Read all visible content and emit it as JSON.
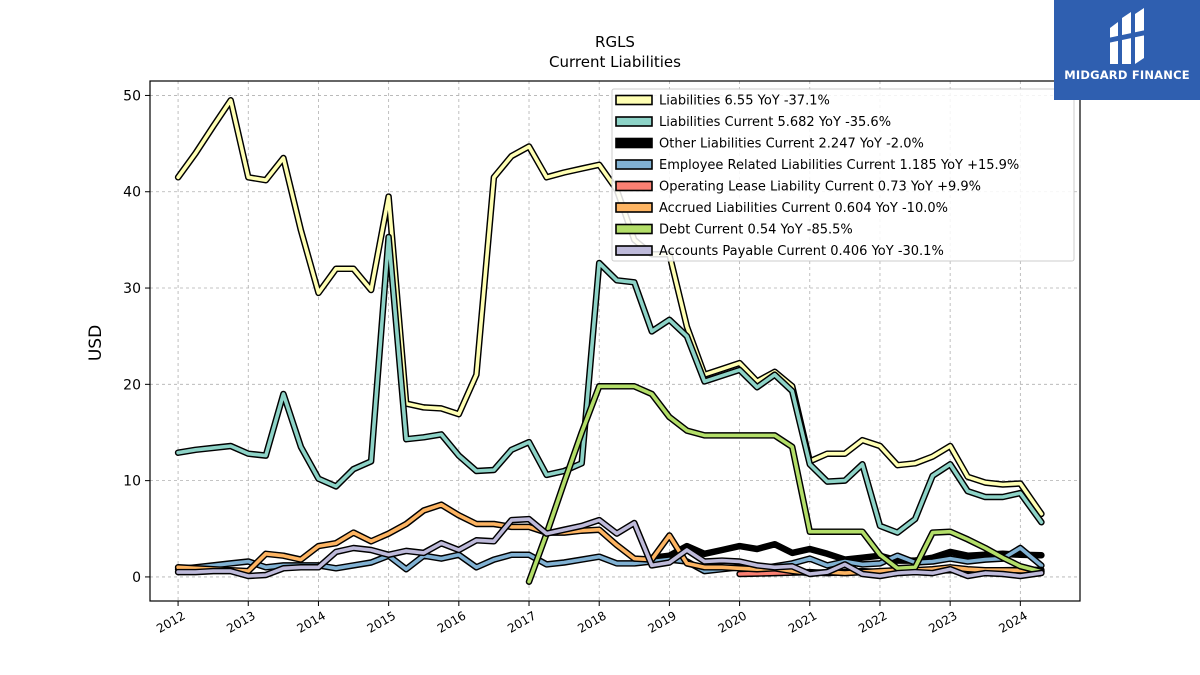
{
  "logo": {
    "text": "MIDGARD FINANCE",
    "bg_color": "#2f5fb0"
  },
  "chart_data": {
    "type": "line",
    "title": "RGLS",
    "subtitle": "Current  Liabilities",
    "ylabel": "USD",
    "xlabel": "",
    "xlim": [
      2011.6,
      2024.85
    ],
    "ylim": [
      -2.5,
      51.5
    ],
    "yticks": [
      0,
      10,
      20,
      30,
      40,
      50
    ],
    "xticks": [
      2012,
      2013,
      2014,
      2015,
      2016,
      2017,
      2018,
      2019,
      2020,
      2021,
      2022,
      2023,
      2024
    ],
    "grid": true,
    "legend_position": "top-right",
    "series": [
      {
        "name": "Liabilities",
        "legend_label": "Liabilities  6.55 YoY -37.1%",
        "color": "#ffffb3",
        "x": [
          2012.0,
          2012.25,
          2012.5,
          2012.75,
          2013.0,
          2013.25,
          2013.5,
          2013.75,
          2014.0,
          2014.25,
          2014.5,
          2014.75,
          2015.0,
          2015.25,
          2015.5,
          2015.75,
          2016.0,
          2016.25,
          2016.5,
          2016.75,
          2017.0,
          2017.25,
          2017.5,
          2017.75,
          2018.0,
          2018.25,
          2018.5,
          2018.75,
          2019.0,
          2019.25,
          2019.5,
          2019.75,
          2020.0,
          2020.25,
          2020.5,
          2020.75,
          2021.0,
          2021.25,
          2021.5,
          2021.75,
          2022.0,
          2022.25,
          2022.5,
          2022.75,
          2023.0,
          2023.25,
          2023.5,
          2023.75,
          2024.0,
          2024.3
        ],
        "values": [
          41.5,
          44.0,
          46.8,
          49.5,
          41.5,
          41.2,
          43.5,
          36.0,
          29.5,
          32.0,
          32.0,
          29.8,
          39.5,
          18.0,
          17.6,
          17.5,
          16.9,
          21.0,
          41.5,
          43.7,
          44.7,
          41.5,
          42.0,
          42.4,
          42.8,
          40.2,
          35.0,
          33.5,
          33.5,
          26.0,
          21.0,
          21.6,
          22.2,
          20.3,
          21.3,
          19.8,
          12.0,
          12.8,
          12.8,
          14.2,
          13.6,
          11.6,
          11.8,
          12.5,
          13.6,
          10.4,
          9.8,
          9.6,
          9.7,
          6.55
        ]
      },
      {
        "name": "Liabilities Current",
        "legend_label": "Liabilities Current  5.682 YoY -35.6%",
        "color": "#8dd3c7",
        "x": [
          2012.0,
          2012.25,
          2012.5,
          2012.75,
          2013.0,
          2013.25,
          2013.5,
          2013.75,
          2014.0,
          2014.25,
          2014.5,
          2014.75,
          2015.0,
          2015.25,
          2015.5,
          2015.75,
          2016.0,
          2016.25,
          2016.5,
          2016.75,
          2017.0,
          2017.25,
          2017.5,
          2017.75,
          2018.0,
          2018.25,
          2018.5,
          2018.75,
          2019.0,
          2019.25,
          2019.5,
          2019.75,
          2020.0,
          2020.25,
          2020.5,
          2020.75,
          2021.0,
          2021.25,
          2021.5,
          2021.75,
          2022.0,
          2022.25,
          2022.5,
          2022.75,
          2023.0,
          2023.25,
          2023.5,
          2023.75,
          2024.0,
          2024.3
        ],
        "values": [
          12.9,
          13.2,
          13.4,
          13.6,
          12.8,
          12.6,
          19.0,
          13.5,
          10.2,
          9.4,
          11.2,
          12.0,
          35.3,
          14.3,
          14.5,
          14.8,
          12.6,
          11.0,
          11.1,
          13.2,
          14.0,
          10.6,
          11.0,
          11.8,
          32.6,
          30.8,
          30.6,
          25.5,
          26.7,
          25.0,
          20.3,
          20.9,
          21.5,
          19.7,
          21.0,
          19.3,
          11.7,
          9.9,
          10.0,
          11.7,
          5.3,
          4.6,
          6.0,
          10.5,
          11.7,
          8.9,
          8.3,
          8.3,
          8.7,
          5.682
        ]
      },
      {
        "name": "Other Liabilities Current",
        "legend_label": "Other Liabilities Current  2.247 YoY -2.0%",
        "color": "#000000",
        "x": [
          2018.75,
          2019.0,
          2019.25,
          2019.5,
          2019.75,
          2020.0,
          2020.25,
          2020.5,
          2020.75,
          2021.0,
          2021.25,
          2021.5,
          2021.75,
          2022.0,
          2022.25,
          2022.5,
          2022.75,
          2023.0,
          2023.25,
          2023.5,
          2023.75,
          2024.0,
          2024.3
        ],
        "values": [
          2.0,
          2.2,
          3.2,
          2.4,
          2.8,
          3.2,
          2.9,
          3.4,
          2.5,
          2.9,
          2.4,
          1.8,
          2.0,
          2.2,
          1.7,
          1.7,
          2.0,
          2.6,
          2.2,
          2.3,
          2.4,
          2.3,
          2.247
        ]
      },
      {
        "name": "Employee Related Liabilities Current",
        "legend_label": "Employee Related Liabilities Current  1.185 YoY +15.9%",
        "color": "#80b1d3",
        "x": [
          2012.0,
          2012.25,
          2012.5,
          2012.75,
          2013.0,
          2013.25,
          2013.5,
          2013.75,
          2014.0,
          2014.25,
          2014.5,
          2014.75,
          2015.0,
          2015.25,
          2015.5,
          2015.75,
          2016.0,
          2016.25,
          2016.5,
          2016.75,
          2017.0,
          2017.25,
          2017.5,
          2017.75,
          2018.0,
          2018.25,
          2018.5,
          2018.75,
          2019.0,
          2019.25,
          2019.5,
          2019.75,
          2020.0,
          2020.25,
          2020.5,
          2020.75,
          2021.0,
          2021.25,
          2021.5,
          2021.75,
          2022.0,
          2022.25,
          2022.5,
          2022.75,
          2023.0,
          2023.25,
          2023.5,
          2023.75,
          2024.0,
          2024.3
        ],
        "values": [
          0.8,
          1.0,
          1.2,
          1.4,
          1.6,
          1.0,
          1.2,
          1.2,
          1.2,
          0.9,
          1.2,
          1.5,
          2.2,
          0.8,
          2.2,
          1.9,
          2.3,
          1.0,
          1.8,
          2.3,
          2.3,
          1.3,
          1.5,
          1.8,
          2.1,
          1.4,
          1.4,
          1.6,
          1.8,
          1.6,
          0.6,
          0.8,
          1.0,
          0.8,
          1.1,
          1.4,
          1.9,
          1.2,
          1.6,
          1.3,
          1.4,
          2.2,
          1.5,
          1.6,
          1.9,
          1.6,
          1.8,
          1.9,
          3.0,
          1.185
        ]
      },
      {
        "name": "Operating Lease Liability Current",
        "legend_label": "Operating Lease Liability Current  0.73 YoY +9.9%",
        "color": "#fb8072",
        "x": [
          2020.0,
          2020.25,
          2020.5,
          2020.75,
          2021.0,
          2021.25,
          2021.5,
          2021.75,
          2022.0,
          2022.25,
          2022.5,
          2022.75,
          2023.0,
          2023.25,
          2023.5,
          2023.75,
          2024.0,
          2024.3
        ],
        "values": [
          0.3,
          0.35,
          0.4,
          0.45,
          0.5,
          0.4,
          0.5,
          0.6,
          0.5,
          0.6,
          0.6,
          0.65,
          0.7,
          0.7,
          0.66,
          0.7,
          0.72,
          0.73
        ]
      },
      {
        "name": "Accrued Liabilities Current",
        "legend_label": "Accrued Liabilities Current  0.604 YoY -10.0%",
        "color": "#fdb462",
        "x": [
          2012.0,
          2012.25,
          2012.5,
          2012.75,
          2013.0,
          2013.25,
          2013.5,
          2013.75,
          2014.0,
          2014.25,
          2014.5,
          2014.75,
          2015.0,
          2015.25,
          2015.5,
          2015.75,
          2016.0,
          2016.25,
          2016.5,
          2016.75,
          2017.0,
          2017.25,
          2017.5,
          2017.75,
          2018.0,
          2018.25,
          2018.5,
          2018.75,
          2019.0,
          2019.25,
          2019.5,
          2019.75,
          2020.0,
          2020.25,
          2020.5,
          2020.75,
          2021.0,
          2021.25,
          2021.5,
          2021.75,
          2022.0,
          2022.25,
          2022.5,
          2022.75,
          2023.0,
          2023.25,
          2023.5,
          2023.75,
          2024.0,
          2024.3
        ],
        "values": [
          1.0,
          0.9,
          0.8,
          0.7,
          0.6,
          2.4,
          2.2,
          1.8,
          3.2,
          3.5,
          4.6,
          3.7,
          4.5,
          5.5,
          6.9,
          7.5,
          6.4,
          5.5,
          5.5,
          5.2,
          5.2,
          4.6,
          4.6,
          4.8,
          4.9,
          3.3,
          1.9,
          1.8,
          4.3,
          1.4,
          1.0,
          1.0,
          0.9,
          0.8,
          0.9,
          0.6,
          0.4,
          0.5,
          0.4,
          0.5,
          0.6,
          0.7,
          0.7,
          0.8,
          1.0,
          0.8,
          0.7,
          0.7,
          0.68,
          0.604
        ]
      },
      {
        "name": "Debt Current",
        "legend_label": "Debt Current  0.54 YoY -85.5%",
        "color": "#b3de69",
        "x": [
          2017.0,
          2017.25,
          2017.5,
          2017.75,
          2018.0,
          2018.25,
          2018.5,
          2018.75,
          2019.0,
          2019.25,
          2019.5,
          2019.75,
          2020.0,
          2020.25,
          2020.5,
          2020.75,
          2021.0,
          2021.25,
          2021.5,
          2021.75,
          2022.0,
          2022.25,
          2022.5,
          2022.75,
          2023.0,
          2023.25,
          2023.5,
          2023.75,
          2024.0,
          2024.3
        ],
        "values": [
          -0.5,
          4.5,
          9.8,
          15.0,
          19.8,
          19.8,
          19.8,
          19.0,
          16.6,
          15.2,
          14.7,
          14.7,
          14.7,
          14.7,
          14.7,
          13.5,
          4.7,
          4.7,
          4.7,
          4.7,
          2.3,
          0.9,
          1.0,
          4.6,
          4.7,
          3.9,
          3.0,
          2.0,
          1.1,
          0.54
        ]
      },
      {
        "name": "Accounts Payable Current",
        "legend_label": "Accounts Payable Current  0.406 YoY -30.1%",
        "color": "#bebada",
        "x": [
          2012.0,
          2012.25,
          2012.5,
          2012.75,
          2013.0,
          2013.25,
          2013.5,
          2013.75,
          2014.0,
          2014.25,
          2014.5,
          2014.75,
          2015.0,
          2015.25,
          2015.5,
          2015.75,
          2016.0,
          2016.25,
          2016.5,
          2016.75,
          2017.0,
          2017.25,
          2017.5,
          2017.75,
          2018.0,
          2018.25,
          2018.5,
          2018.75,
          2019.0,
          2019.25,
          2019.5,
          2019.75,
          2020.0,
          2020.25,
          2020.5,
          2020.75,
          2021.0,
          2021.25,
          2021.5,
          2021.75,
          2022.0,
          2022.25,
          2022.5,
          2022.75,
          2023.0,
          2023.25,
          2023.5,
          2023.75,
          2024.0,
          2024.3
        ],
        "values": [
          0.5,
          0.5,
          0.6,
          0.6,
          0.1,
          0.2,
          0.9,
          1.0,
          1.0,
          2.6,
          3.0,
          2.8,
          2.3,
          2.7,
          2.5,
          3.5,
          2.8,
          3.8,
          3.7,
          5.9,
          6.0,
          4.5,
          4.9,
          5.3,
          5.9,
          4.5,
          5.6,
          1.2,
          1.5,
          2.8,
          1.6,
          1.7,
          1.6,
          1.2,
          1.0,
          1.1,
          0.3,
          0.5,
          1.3,
          0.3,
          0.1,
          0.4,
          0.5,
          0.4,
          0.8,
          0.1,
          0.4,
          0.3,
          0.1,
          0.406
        ]
      }
    ]
  }
}
